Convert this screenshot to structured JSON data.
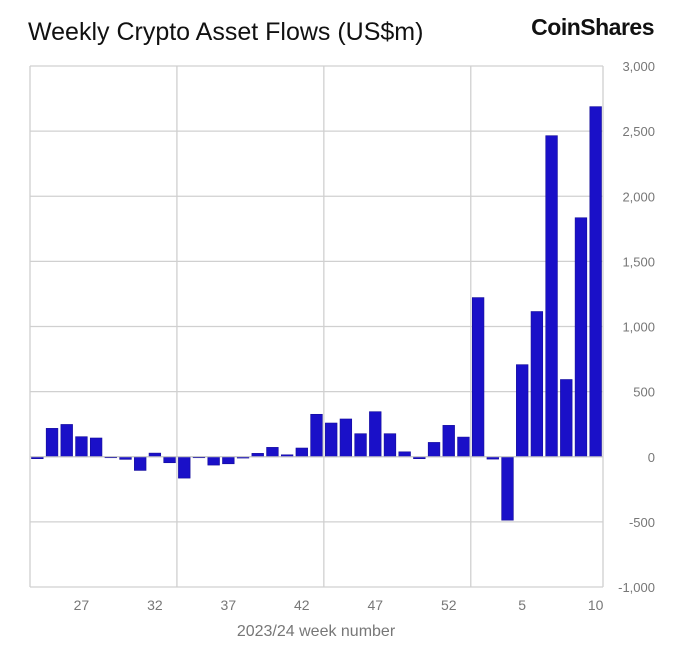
{
  "chart_data": {
    "type": "bar",
    "title": "Weekly Crypto Asset Flows (US$m)",
    "brand": "CoinShares",
    "xlabel": "2023/24 week number",
    "ylabel": "",
    "ylim": [
      -1000,
      3000
    ],
    "yticks": [
      3000,
      2500,
      2000,
      1500,
      1000,
      500,
      0,
      -500,
      -1000
    ],
    "ytick_labels": [
      "3,000",
      "2,500",
      "2,000",
      "1,500",
      "1,000",
      "500",
      "0",
      "-500",
      "-1,000"
    ],
    "xtick_labels": [
      "27",
      "32",
      "37",
      "42",
      "47",
      "52",
      "5",
      "10"
    ],
    "categories": [
      "24",
      "25",
      "26",
      "27",
      "28",
      "29",
      "30",
      "31",
      "32",
      "33",
      "34",
      "35",
      "36",
      "37",
      "38",
      "39",
      "40",
      "41",
      "42",
      "43",
      "44",
      "45",
      "46",
      "47",
      "48",
      "49",
      "50",
      "51",
      "52",
      "1",
      "2",
      "3",
      "4",
      "5",
      "6",
      "7",
      "8",
      "9",
      "10"
    ],
    "values": [
      -15,
      218,
      248,
      154,
      144,
      0,
      -20,
      -105,
      28,
      -46,
      -164,
      0,
      -64,
      -54,
      -10,
      26,
      72,
      15,
      67,
      326,
      259,
      290,
      177,
      346,
      177,
      38,
      -15,
      110,
      241,
      151,
      1222,
      -18,
      -487,
      707,
      1115,
      2465,
      593,
      1835,
      2688
    ],
    "grid": true,
    "color": "#1a10c8",
    "axis_position": "right"
  }
}
